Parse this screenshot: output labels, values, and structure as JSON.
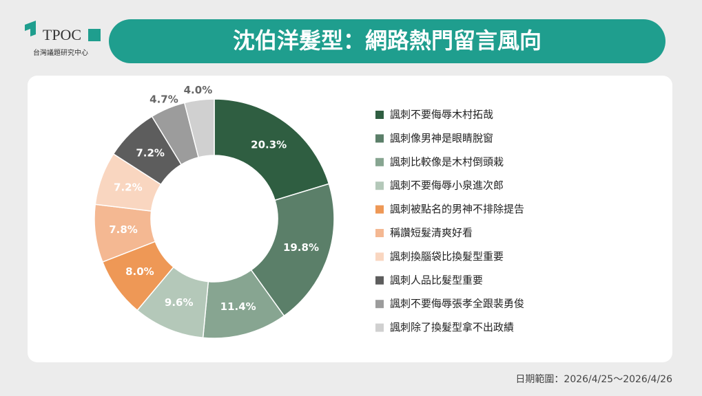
{
  "logo": {
    "name": "TPOC",
    "subtitle": "台灣議題研究中心"
  },
  "chart_data": {
    "type": "donut",
    "title": "沈伯洋髮型：網路熱門留言風向",
    "categories": [
      "諷刺不要侮辱木村拓哉",
      "諷刺像男神是眼睛脫窗",
      "諷刺比較像是木村倒頭栽",
      "諷刺不要侮辱小泉進次郎",
      "諷刺被點名的男神不排除提告",
      "稱讚短髮清爽好看",
      "諷刺換腦袋比換髮型重要",
      "諷刺人品比髮型重要",
      "諷刺不要侮辱張孝全跟裴勇俊",
      "諷刺除了換髮型拿不出政績"
    ],
    "values": [
      20.3,
      19.8,
      11.4,
      9.6,
      8.0,
      7.8,
      7.2,
      7.2,
      4.7,
      4.0
    ],
    "value_labels": [
      "20.3%",
      "19.8%",
      "11.4%",
      "9.6%",
      "8.0%",
      "7.8%",
      "7.2%",
      "7.2%",
      "4.7%",
      "4.0%"
    ],
    "colors": [
      "#2f5e41",
      "#5b7f69",
      "#87a591",
      "#b4c8b9",
      "#ee9856",
      "#f4b892",
      "#f9d6c0",
      "#5d5d5d",
      "#9c9c9c",
      "#d0d0d0"
    ],
    "footnote": "日期範圍：2026/4/25～2026/4/26"
  }
}
